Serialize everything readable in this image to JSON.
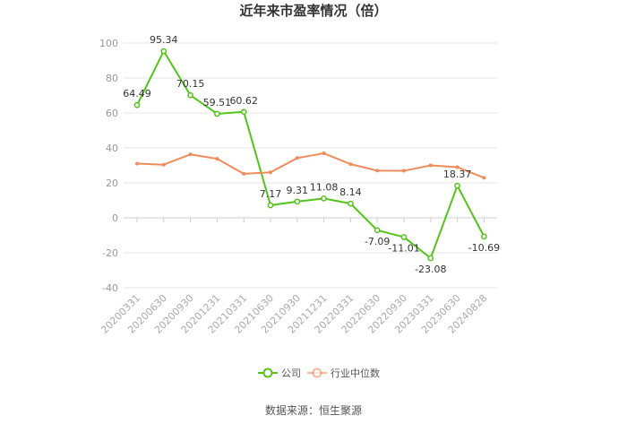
{
  "chart_data": {
    "type": "line",
    "title": "近年来市盈率情况（倍）",
    "x": [
      "20200331",
      "20200630",
      "20200930",
      "20201231",
      "20210331",
      "20210630",
      "20210930",
      "20211231",
      "20220331",
      "20220630",
      "20220930",
      "20230331",
      "20230630",
      "20240828"
    ],
    "ylim": [
      -40,
      100
    ],
    "yticks": [
      -40,
      -20,
      0,
      20,
      40,
      60,
      80,
      100
    ],
    "grid": true,
    "legend_position": "bottom",
    "series": [
      {
        "name": "公司",
        "color": "#52c41a",
        "values": [
          64.49,
          95.34,
          70.15,
          59.51,
          60.62,
          7.17,
          9.31,
          11.08,
          8.14,
          -7.09,
          -11.01,
          -23.08,
          18.37,
          -10.69
        ],
        "labels": [
          "64.49",
          "95.34",
          "70.15",
          "59.51",
          "60.62",
          "7.17",
          "9.31",
          "11.08",
          "8.14",
          "-7.09",
          "-11.01",
          "-23.08",
          "18.37",
          "-10.69"
        ]
      },
      {
        "name": "行业中位数",
        "color": "#f08c5a",
        "values": [
          31.0,
          30.4,
          36.3,
          33.8,
          25.2,
          26.0,
          34.2,
          36.9,
          30.7,
          27.0,
          26.9,
          30.0,
          29.0,
          22.9
        ]
      }
    ],
    "source": "数据来源：恒生聚源"
  }
}
